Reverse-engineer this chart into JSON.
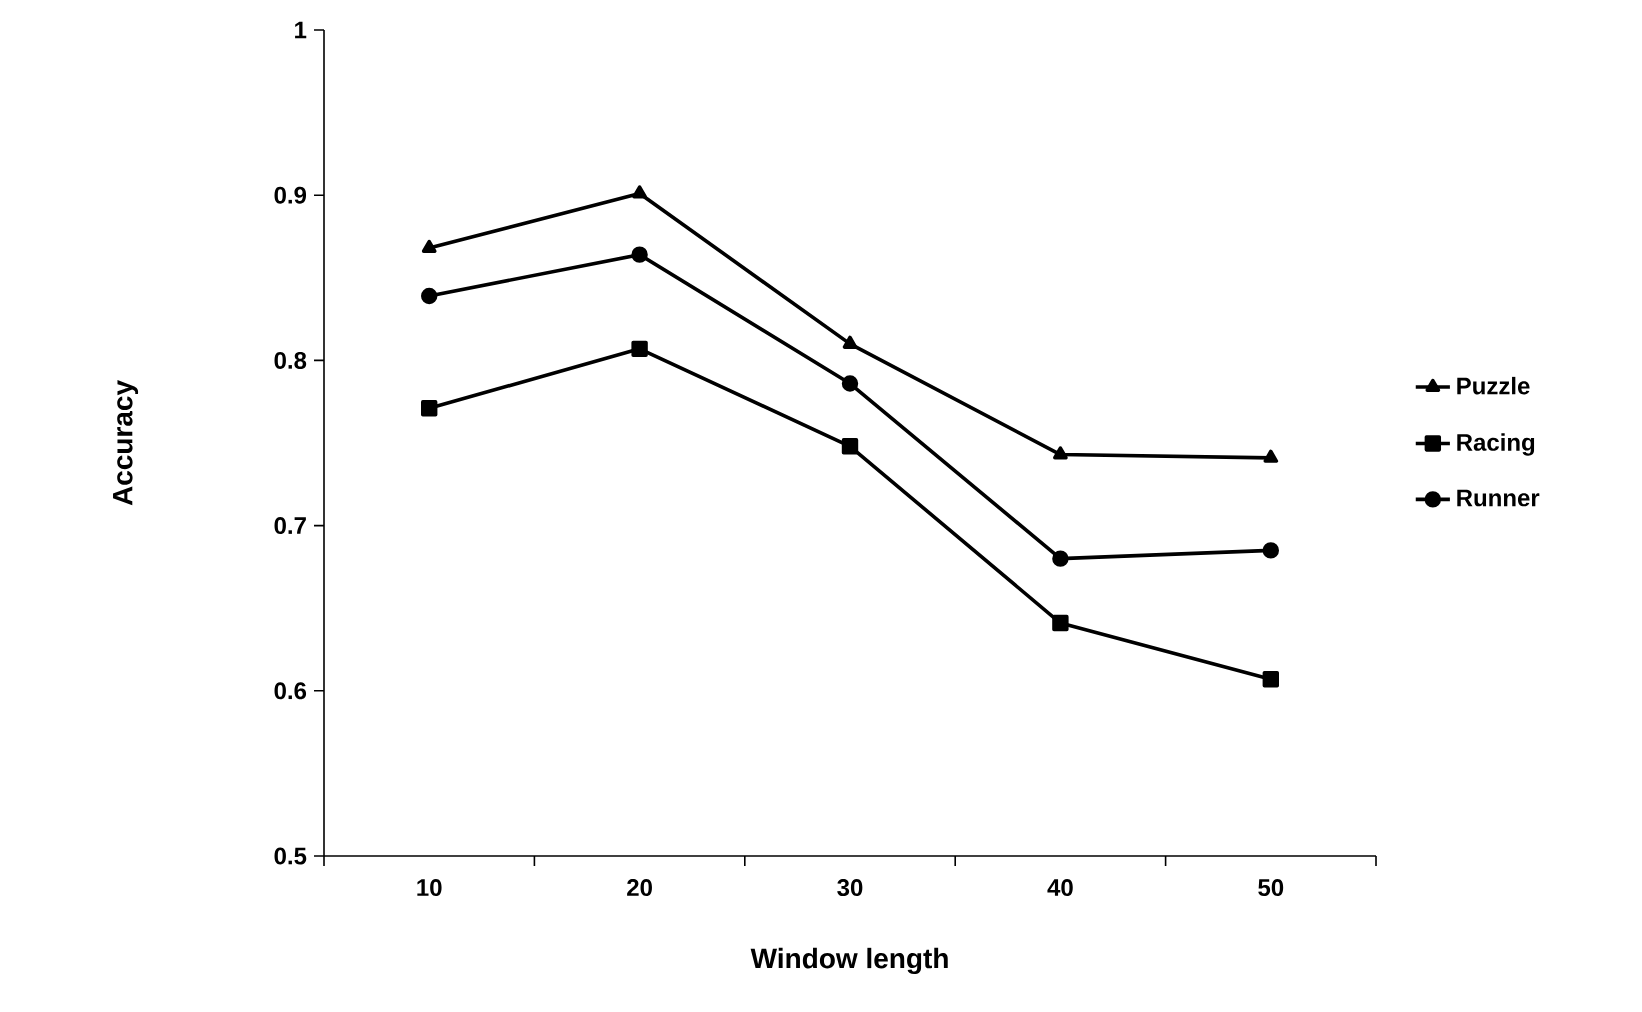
{
  "chart_data": {
    "type": "line",
    "xlabel": "Window length",
    "ylabel": "Accuracy",
    "categories": [
      "10",
      "20",
      "30",
      "40",
      "50"
    ],
    "series": [
      {
        "name": "Puzzle",
        "color": "#000000",
        "marker": "triangle",
        "values": [
          0.868,
          0.901,
          0.81,
          0.743,
          0.741
        ]
      },
      {
        "name": "Racing",
        "color": "#000000",
        "marker": "square",
        "values": [
          0.771,
          0.807,
          0.748,
          0.641,
          0.607
        ]
      },
      {
        "name": "Runner",
        "color": "#000000",
        "marker": "circle",
        "values": [
          0.839,
          0.864,
          0.786,
          0.68,
          0.685
        ]
      }
    ],
    "ylim": [
      0.5,
      1
    ],
    "yticks": [
      0.5,
      0.6,
      0.7,
      0.8,
      0.9,
      1
    ],
    "grid": false,
    "legend": "right",
    "line_style": "solid"
  }
}
